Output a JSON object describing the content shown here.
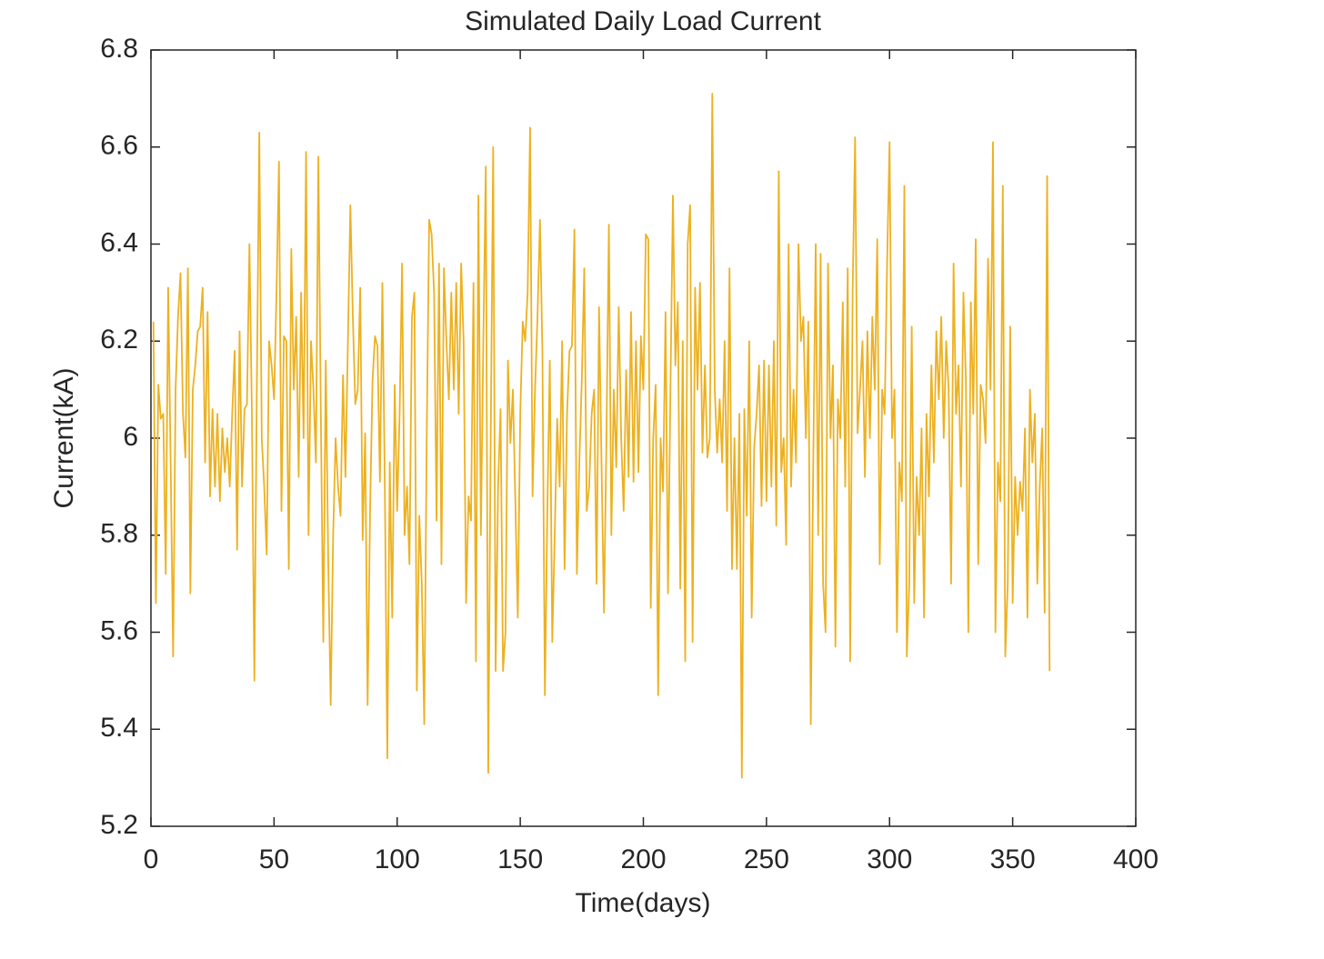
{
  "chart_data": {
    "type": "line",
    "title": "Simulated Daily Load Current",
    "xlabel": "Time(days)",
    "ylabel": "Current(kA)",
    "xlim": [
      0,
      400
    ],
    "xticks": [
      0,
      50,
      100,
      150,
      200,
      250,
      300,
      350,
      400
    ],
    "ylim": [
      5.2,
      6.8
    ],
    "yticks": [
      5.2,
      5.4,
      5.6,
      5.8,
      6,
      6.2,
      6.4,
      6.6,
      6.8
    ],
    "grid": false,
    "x": [
      1,
      2,
      3,
      4,
      5,
      6,
      7,
      8,
      9,
      10,
      11,
      12,
      13,
      14,
      15,
      16,
      17,
      18,
      19,
      20,
      21,
      22,
      23,
      24,
      25,
      26,
      27,
      28,
      29,
      30,
      31,
      32,
      33,
      34,
      35,
      36,
      37,
      38,
      39,
      40,
      41,
      42,
      43,
      44,
      45,
      46,
      47,
      48,
      49,
      50,
      51,
      52,
      53,
      54,
      55,
      56,
      57,
      58,
      59,
      60,
      61,
      62,
      63,
      64,
      65,
      66,
      67,
      68,
      69,
      70,
      71,
      72,
      73,
      74,
      75,
      76,
      77,
      78,
      79,
      80,
      81,
      82,
      83,
      84,
      85,
      86,
      87,
      88,
      89,
      90,
      91,
      92,
      93,
      94,
      95,
      96,
      97,
      98,
      99,
      100,
      101,
      102,
      103,
      104,
      105,
      106,
      107,
      108,
      109,
      110,
      111,
      112,
      113,
      114,
      115,
      116,
      117,
      118,
      119,
      120,
      121,
      122,
      123,
      124,
      125,
      126,
      127,
      128,
      129,
      130,
      131,
      132,
      133,
      134,
      135,
      136,
      137,
      138,
      139,
      140,
      141,
      142,
      143,
      144,
      145,
      146,
      147,
      148,
      149,
      150,
      151,
      152,
      153,
      154,
      155,
      156,
      157,
      158,
      159,
      160,
      161,
      162,
      163,
      164,
      165,
      166,
      167,
      168,
      169,
      170,
      171,
      172,
      173,
      174,
      175,
      176,
      177,
      178,
      179,
      180,
      181,
      182,
      183,
      184,
      185,
      186,
      187,
      188,
      189,
      190,
      191,
      192,
      193,
      194,
      195,
      196,
      197,
      198,
      199,
      200,
      201,
      202,
      203,
      204,
      205,
      206,
      207,
      208,
      209,
      210,
      211,
      212,
      213,
      214,
      215,
      216,
      217,
      218,
      219,
      220,
      221,
      222,
      223,
      224,
      225,
      226,
      227,
      228,
      229,
      230,
      231,
      232,
      233,
      234,
      235,
      236,
      237,
      238,
      239,
      240,
      241,
      242,
      243,
      244,
      245,
      246,
      247,
      248,
      249,
      250,
      251,
      252,
      253,
      254,
      255,
      256,
      257,
      258,
      259,
      260,
      261,
      262,
      263,
      264,
      265,
      266,
      267,
      268,
      269,
      270,
      271,
      272,
      273,
      274,
      275,
      276,
      277,
      278,
      279,
      280,
      281,
      282,
      283,
      284,
      285,
      286,
      287,
      288,
      289,
      290,
      291,
      292,
      293,
      294,
      295,
      296,
      297,
      298,
      299,
      300,
      301,
      302,
      303,
      304,
      305,
      306,
      307,
      308,
      309,
      310,
      311,
      312,
      313,
      314,
      315,
      316,
      317,
      318,
      319,
      320,
      321,
      322,
      323,
      324,
      325,
      326,
      327,
      328,
      329,
      330,
      331,
      332,
      333,
      334,
      335,
      336,
      337,
      338,
      339,
      340,
      341,
      342,
      343,
      344,
      345,
      346,
      347,
      348,
      349,
      350,
      351,
      352,
      353,
      354,
      355,
      356,
      357,
      358,
      359,
      360,
      361,
      362,
      363,
      364,
      365
    ],
    "series": [
      {
        "color": "#EDB120",
        "values": [
          6.24,
          5.66,
          6.11,
          6.04,
          6.05,
          5.72,
          6.31,
          5.95,
          5.55,
          6.1,
          6.25,
          6.34,
          6.05,
          5.96,
          6.35,
          5.68,
          6.1,
          6.15,
          6.22,
          6.23,
          6.31,
          5.95,
          6.26,
          5.88,
          6.06,
          5.9,
          6.05,
          5.87,
          6.02,
          5.93,
          6.0,
          5.9,
          6.05,
          6.18,
          5.77,
          6.22,
          5.9,
          6.06,
          6.07,
          6.4,
          6.05,
          5.5,
          6.1,
          6.63,
          6.0,
          5.9,
          5.76,
          6.2,
          6.15,
          6.08,
          6.3,
          6.57,
          5.85,
          6.21,
          6.2,
          5.73,
          6.39,
          6.1,
          6.25,
          5.92,
          6.3,
          6.0,
          6.59,
          5.8,
          6.2,
          6.1,
          5.95,
          6.58,
          6.05,
          5.58,
          6.16,
          5.75,
          5.45,
          5.8,
          6.0,
          5.9,
          5.84,
          6.13,
          5.92,
          6.2,
          6.48,
          6.25,
          6.07,
          6.1,
          6.31,
          5.79,
          6.01,
          5.45,
          5.85,
          6.12,
          6.21,
          6.19,
          5.91,
          6.32,
          5.9,
          5.34,
          5.95,
          5.63,
          6.11,
          5.85,
          6.05,
          6.36,
          5.8,
          5.9,
          5.74,
          6.25,
          6.3,
          5.48,
          5.84,
          5.7,
          5.41,
          6.0,
          6.45,
          6.42,
          6.3,
          5.83,
          6.36,
          5.74,
          6.35,
          6.2,
          6.08,
          6.3,
          6.1,
          6.32,
          6.05,
          6.36,
          6.2,
          5.66,
          5.88,
          5.83,
          6.32,
          5.54,
          6.5,
          5.8,
          6.2,
          6.56,
          5.31,
          6.0,
          6.6,
          5.52,
          5.9,
          6.06,
          5.52,
          5.6,
          6.16,
          5.99,
          6.1,
          5.87,
          5.63,
          6.05,
          6.24,
          6.2,
          6.3,
          6.64,
          5.88,
          6.1,
          6.25,
          6.45,
          6.18,
          5.47,
          5.85,
          6.16,
          5.58,
          5.8,
          6.04,
          5.9,
          6.2,
          5.73,
          6.05,
          6.18,
          6.19,
          6.43,
          5.72,
          5.95,
          6.12,
          6.35,
          5.85,
          5.9,
          6.05,
          6.1,
          5.7,
          6.27,
          5.95,
          5.64,
          6.0,
          6.44,
          5.8,
          6.1,
          5.94,
          6.27,
          6.0,
          5.85,
          6.14,
          5.92,
          6.26,
          5.91,
          6.2,
          5.93,
          6.21,
          6.1,
          6.42,
          6.41,
          5.65,
          6.0,
          6.11,
          5.47,
          6.0,
          5.89,
          6.26,
          5.68,
          6.1,
          6.5,
          6.15,
          6.28,
          5.69,
          6.2,
          5.54,
          6.4,
          6.48,
          5.58,
          6.31,
          6.1,
          6.32,
          5.97,
          6.15,
          5.96,
          6.0,
          6.71,
          6.1,
          5.97,
          6.08,
          5.95,
          6.2,
          5.85,
          6.35,
          5.73,
          6.0,
          5.73,
          6.05,
          5.3,
          6.06,
          5.84,
          6.2,
          5.63,
          5.98,
          6.05,
          6.15,
          5.86,
          6.16,
          5.87,
          6.15,
          5.9,
          6.2,
          5.82,
          6.55,
          5.93,
          6.0,
          5.78,
          6.4,
          5.9,
          6.1,
          5.95,
          6.4,
          6.2,
          6.25,
          6.0,
          6.24,
          5.41,
          5.95,
          6.4,
          5.8,
          6.38,
          5.7,
          5.6,
          6.36,
          6.0,
          6.15,
          5.57,
          6.08,
          6.0,
          6.28,
          5.9,
          6.35,
          5.54,
          6.3,
          6.62,
          6.01,
          6.1,
          6.2,
          5.92,
          6.22,
          6.0,
          6.25,
          6.1,
          6.41,
          5.74,
          6.1,
          6.05,
          6.36,
          6.61,
          6.0,
          6.1,
          5.6,
          5.95,
          5.87,
          6.52,
          5.55,
          5.7,
          6.23,
          5.66,
          5.92,
          5.8,
          6.02,
          5.63,
          6.05,
          5.88,
          6.15,
          5.95,
          6.22,
          6.08,
          6.25,
          6.0,
          6.2,
          6.1,
          5.7,
          6.36,
          6.05,
          6.15,
          5.9,
          6.3,
          6.12,
          5.6,
          6.28,
          6.05,
          6.41,
          5.74,
          6.11,
          6.08,
          5.99,
          6.37,
          6.1,
          6.61,
          5.6,
          5.95,
          5.87,
          6.52,
          5.55,
          5.7,
          6.23,
          5.66,
          5.92,
          5.8,
          5.91,
          5.85,
          6.02,
          5.63,
          6.1,
          5.95,
          6.05,
          5.7,
          5.9,
          6.02,
          5.64,
          6.54,
          5.52
        ]
      }
    ]
  }
}
